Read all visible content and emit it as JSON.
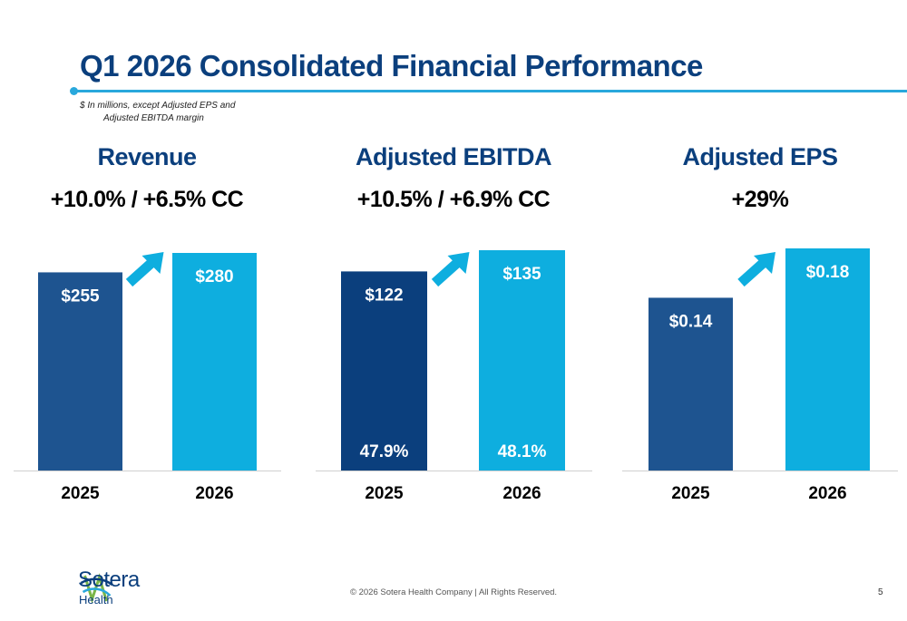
{
  "title": "Q1 2026 Consolidated Financial Performance",
  "subtitle": {
    "line1": "$ In millions, except Adjusted EPS and",
    "line2": "Adjusted EBITDA margin"
  },
  "panels": [
    {
      "title": "Revenue",
      "growth": "+10.0% / +6.5% CC"
    },
    {
      "title": "Adjusted EBITDA",
      "growth": "+10.5% / +6.9% CC"
    },
    {
      "title": "Adjusted EPS",
      "growth": "+29%"
    }
  ],
  "chart_data": [
    {
      "type": "bar",
      "title": "Revenue",
      "categories": [
        "2025",
        "2026"
      ],
      "values": [
        255,
        280
      ],
      "data_labels": [
        "$255",
        "$280"
      ],
      "colors": [
        "#1e5490",
        "#0eaedf"
      ]
    },
    {
      "type": "bar",
      "title": "Adjusted EBITDA",
      "categories": [
        "2025",
        "2026"
      ],
      "values": [
        122,
        135
      ],
      "data_labels": [
        "$122",
        "$135"
      ],
      "secondary_labels": [
        "47.9%",
        "48.1%"
      ],
      "colors": [
        "#0b3f7d",
        "#0eaedf"
      ]
    },
    {
      "type": "bar",
      "title": "Adjusted EPS",
      "categories": [
        "2025",
        "2026"
      ],
      "values": [
        0.14,
        0.18
      ],
      "data_labels": [
        "$0.14",
        "$0.18"
      ],
      "colors": [
        "#1e5490",
        "#0eaedf"
      ]
    }
  ],
  "arrow_color": "#0eaedf",
  "footer": {
    "copyright": "© 2026 Sotera Health Company |  All Rights Reserved.",
    "page_number": "5",
    "logo_name": "Sotera",
    "logo_sub": "Health"
  }
}
